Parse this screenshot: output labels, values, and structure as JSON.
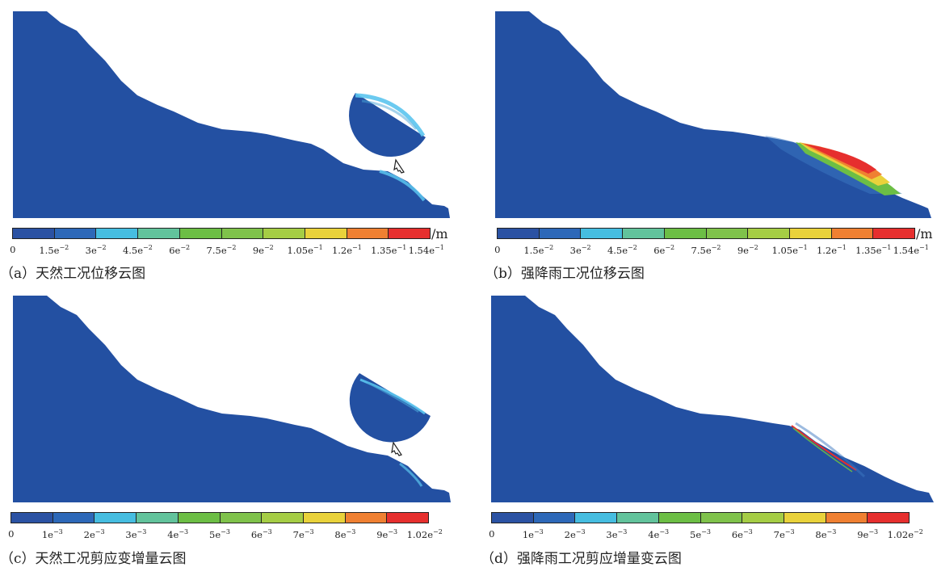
{
  "panels": [
    {
      "id": "a",
      "caption": "（a）天然工况位移云图",
      "unit": "/m",
      "ticks": [
        {
          "b": "0",
          "e": ""
        },
        {
          "b": "1.5e",
          "e": "−2"
        },
        {
          "b": "3e",
          "e": "−2"
        },
        {
          "b": "4.5e",
          "e": "−2"
        },
        {
          "b": "6e",
          "e": "−2"
        },
        {
          "b": "7.5e",
          "e": "−2"
        },
        {
          "b": "9e",
          "e": "−2"
        },
        {
          "b": "1.05e",
          "e": "−1"
        },
        {
          "b": "1.2e",
          "e": "−1"
        },
        {
          "b": "1.35e",
          "e": "−1"
        },
        {
          "b": "1.54e",
          "e": "−1"
        }
      ]
    },
    {
      "id": "b",
      "caption": "（b）强降雨工况位移云图",
      "unit": "/m",
      "ticks": [
        {
          "b": "0",
          "e": ""
        },
        {
          "b": "1.5e",
          "e": "−2"
        },
        {
          "b": "3e",
          "e": "−2"
        },
        {
          "b": "4.5e",
          "e": "−2"
        },
        {
          "b": "6e",
          "e": "−2"
        },
        {
          "b": "7.5e",
          "e": "−2"
        },
        {
          "b": "9e",
          "e": "−2"
        },
        {
          "b": "1.05e",
          "e": "−1"
        },
        {
          "b": "1.2e",
          "e": "−1"
        },
        {
          "b": "1.35e",
          "e": "−1"
        },
        {
          "b": "1.54e",
          "e": "−1"
        }
      ]
    },
    {
      "id": "c",
      "caption": "（c）天然工况剪应变增量云图",
      "unit": "",
      "ticks": [
        {
          "b": "0",
          "e": ""
        },
        {
          "b": "1e",
          "e": "−3"
        },
        {
          "b": "2e",
          "e": "−3"
        },
        {
          "b": "3e",
          "e": "−3"
        },
        {
          "b": "4e",
          "e": "−3"
        },
        {
          "b": "5e",
          "e": "−3"
        },
        {
          "b": "6e",
          "e": "−3"
        },
        {
          "b": "7e",
          "e": "−3"
        },
        {
          "b": "8e",
          "e": "−3"
        },
        {
          "b": "9e",
          "e": "−3"
        },
        {
          "b": "1.02e",
          "e": "−2"
        }
      ]
    },
    {
      "id": "d",
      "caption": "（d）强降雨工况剪应增量变云图",
      "unit": "",
      "ticks": [
        {
          "b": "0",
          "e": ""
        },
        {
          "b": "1e",
          "e": "−3"
        },
        {
          "b": "2e",
          "e": "−3"
        },
        {
          "b": "3e",
          "e": "−3"
        },
        {
          "b": "4e",
          "e": "−3"
        },
        {
          "b": "5e",
          "e": "−3"
        },
        {
          "b": "6e",
          "e": "−3"
        },
        {
          "b": "7e",
          "e": "−3"
        },
        {
          "b": "8e",
          "e": "−3"
        },
        {
          "b": "9e",
          "e": "−3"
        },
        {
          "b": "1.02e",
          "e": "−2"
        }
      ]
    }
  ],
  "colormap": [
    "#2b52a3",
    "#2d68b8",
    "#46bde0",
    "#62c39c",
    "#6cbe45",
    "#7fc24b",
    "#a5cd45",
    "#e9d23b",
    "#ef8032",
    "#e62f2e"
  ],
  "slope_color": "#2350a2"
}
